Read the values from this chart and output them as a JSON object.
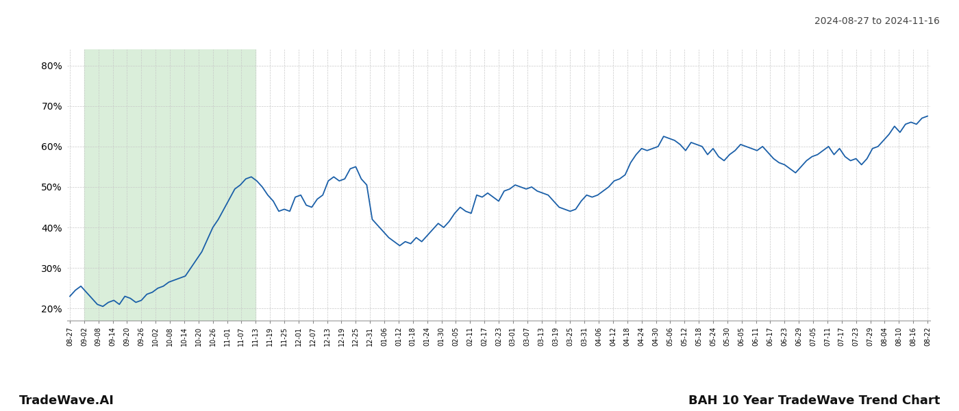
{
  "title_top_right": "2024-08-27 to 2024-11-16",
  "footer_left": "TradeWave.AI",
  "footer_right": "BAH 10 Year TradeWave Trend Chart",
  "bg_color": "#ffffff",
  "line_color": "#1a5fa8",
  "highlight_bg": "#daeeda",
  "highlight_label_start": "09-02",
  "highlight_label_end": "11-13",
  "ylim": [
    17,
    84
  ],
  "yticks": [
    20,
    30,
    40,
    50,
    60,
    70,
    80
  ],
  "x_labels": [
    "08-27",
    "09-02",
    "09-08",
    "09-14",
    "09-20",
    "09-26",
    "10-02",
    "10-08",
    "10-14",
    "10-20",
    "10-26",
    "11-01",
    "11-07",
    "11-13",
    "11-19",
    "11-25",
    "12-01",
    "12-07",
    "12-13",
    "12-19",
    "12-25",
    "12-31",
    "01-06",
    "01-12",
    "01-18",
    "01-24",
    "01-30",
    "02-05",
    "02-11",
    "02-17",
    "02-23",
    "03-01",
    "03-07",
    "03-13",
    "03-19",
    "03-25",
    "03-31",
    "04-06",
    "04-12",
    "04-18",
    "04-24",
    "04-30",
    "05-06",
    "05-12",
    "05-18",
    "05-24",
    "05-30",
    "06-05",
    "06-11",
    "06-17",
    "06-23",
    "06-29",
    "07-05",
    "07-11",
    "07-17",
    "07-23",
    "07-29",
    "08-04",
    "08-10",
    "08-16",
    "08-22"
  ],
  "values": [
    23.0,
    24.5,
    25.5,
    24.0,
    22.5,
    21.0,
    20.5,
    21.5,
    22.0,
    21.0,
    23.0,
    22.5,
    21.5,
    22.0,
    23.5,
    24.0,
    25.0,
    25.5,
    26.5,
    27.0,
    27.5,
    28.0,
    30.0,
    32.0,
    34.0,
    37.0,
    40.0,
    42.0,
    44.5,
    47.0,
    49.5,
    50.5,
    52.0,
    52.5,
    51.5,
    50.0,
    48.0,
    46.5,
    44.0,
    44.5,
    44.0,
    47.5,
    48.0,
    45.5,
    45.0,
    47.0,
    48.0,
    51.5,
    52.5,
    51.5,
    52.0,
    54.5,
    55.0,
    52.0,
    50.5,
    42.0,
    40.5,
    39.0,
    37.5,
    36.5,
    35.5,
    36.5,
    36.0,
    37.5,
    36.5,
    38.0,
    39.5,
    41.0,
    40.0,
    41.5,
    43.5,
    45.0,
    44.0,
    43.5,
    48.0,
    47.5,
    48.5,
    47.5,
    46.5,
    49.0,
    49.5,
    50.5,
    50.0,
    49.5,
    50.0,
    49.0,
    48.5,
    48.0,
    46.5,
    45.0,
    44.5,
    44.0,
    44.5,
    46.5,
    48.0,
    47.5,
    48.0,
    49.0,
    50.0,
    51.5,
    52.0,
    53.0,
    56.0,
    58.0,
    59.5,
    59.0,
    59.5,
    60.0,
    62.5,
    62.0,
    61.5,
    60.5,
    59.0,
    61.0,
    60.5,
    60.0,
    58.0,
    59.5,
    57.5,
    56.5,
    58.0,
    59.0,
    60.5,
    60.0,
    59.5,
    59.0,
    60.0,
    58.5,
    57.0,
    56.0,
    55.5,
    54.5,
    53.5,
    55.0,
    56.5,
    57.5,
    58.0,
    59.0,
    60.0,
    58.0,
    59.5,
    57.5,
    56.5,
    57.0,
    55.5,
    57.0,
    59.5,
    60.0,
    61.5,
    63.0,
    65.0,
    63.5,
    65.5,
    66.0,
    65.5,
    67.0,
    67.5
  ]
}
